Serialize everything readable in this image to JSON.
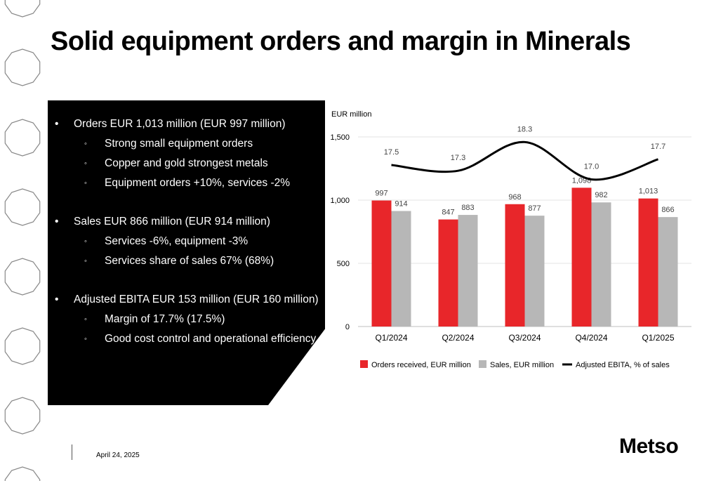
{
  "title": "Solid equipment orders and margin in Minerals",
  "bullets": [
    {
      "level": 1,
      "text": "Orders EUR 1,013 million (EUR 997 million)"
    },
    {
      "level": 2,
      "text": "Strong small equipment orders"
    },
    {
      "level": 2,
      "text": "Copper and gold strongest metals"
    },
    {
      "level": 2,
      "text": "Equipment orders +10%, services -2%"
    },
    {
      "level": 0,
      "text": ""
    },
    {
      "level": 1,
      "text": "Sales EUR 866 million (EUR 914 million)"
    },
    {
      "level": 2,
      "text": "Services -6%, equipment -3%"
    },
    {
      "level": 2,
      "text": "Services share of sales 67% (68%)"
    },
    {
      "level": 0,
      "text": ""
    },
    {
      "level": 1,
      "text": "Adjusted EBITA EUR 153 million (EUR 160 million)"
    },
    {
      "level": 2,
      "text": "Margin of 17.7% (17.5%)"
    },
    {
      "level": 2,
      "text": "Good cost control and operational efficiency"
    }
  ],
  "bullet_marks": {
    "level1": "•",
    "level2": "◦"
  },
  "chart_data": {
    "type": "bar",
    "unit_label": "EUR million",
    "categories": [
      "Q1/2024",
      "Q2/2024",
      "Q3/2024",
      "Q4/2024",
      "Q1/2025"
    ],
    "series": [
      {
        "name": "Orders received, EUR million",
        "kind": "bar",
        "color": "#e8262a",
        "values": [
          997,
          847,
          968,
          1098,
          1013
        ]
      },
      {
        "name": "Sales, EUR million",
        "kind": "bar",
        "color": "#b7b7b7",
        "values": [
          914,
          883,
          877,
          982,
          866
        ]
      },
      {
        "name": "Adjusted EBITA, % of sales",
        "kind": "line",
        "color": "#000000",
        "values": [
          17.5,
          17.3,
          18.3,
          17.0,
          17.7
        ]
      }
    ],
    "bar_labels": [
      [
        "997",
        "847",
        "968",
        "1,098",
        "1,013"
      ],
      [
        "914",
        "883",
        "877",
        "982",
        "866"
      ]
    ],
    "line_labels": [
      "17.5",
      "17.3",
      "18.3",
      "17.0",
      "17.7"
    ],
    "y_ticks": [
      "0",
      "500",
      "1,000",
      "1,500"
    ],
    "y_tick_values": [
      0,
      500,
      1000,
      1500
    ],
    "ylim": [
      0,
      1500
    ],
    "line_ylim": [
      16.4,
      18.65
    ],
    "grid": true,
    "legend_position": "bottom"
  },
  "footer": {
    "date": "April 24, 2025"
  },
  "logo": "Metso"
}
